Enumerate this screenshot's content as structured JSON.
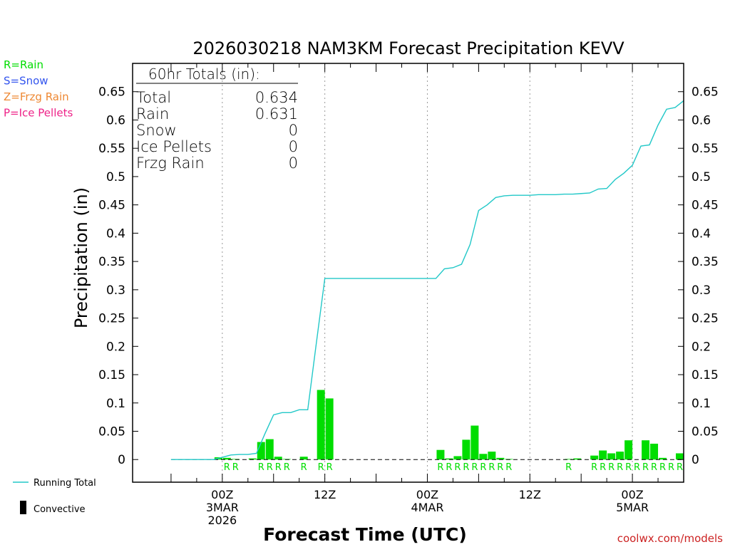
{
  "chart_data": {
    "type": "bar",
    "title": "2026030218 NAM3KM Forecast Precipitation KEVV",
    "xlabel": "Forecast Time (UTC)",
    "ylabel": "Precipitation (in)",
    "ylim": [
      -0.04,
      0.7
    ],
    "y_ticks": [
      0,
      0.05,
      0.1,
      0.15,
      0.2,
      0.25,
      0.3,
      0.35,
      0.4,
      0.45,
      0.5,
      0.55,
      0.6,
      0.65
    ],
    "y_tick_labels": [
      "0",
      "0.05",
      "0.1",
      "0.15",
      "0.2",
      "0.25",
      "0.3",
      "0.35",
      "0.4",
      "0.45",
      "0.5",
      "0.55",
      "0.6",
      "0.65"
    ],
    "x_unit": "forecast hour",
    "xlim": [
      -4.5,
      60
    ],
    "x_ticks": [
      {
        "hour": 6,
        "lines": [
          "00Z",
          "3MAR",
          "2026"
        ]
      },
      {
        "hour": 18,
        "lines": [
          "12Z"
        ]
      },
      {
        "hour": 30,
        "lines": [
          "00Z",
          "4MAR"
        ]
      },
      {
        "hour": 42,
        "lines": [
          "12Z"
        ]
      },
      {
        "hour": 54,
        "lines": [
          "00Z",
          "5MAR"
        ]
      }
    ],
    "bars": {
      "name": "Hourly Precipitation",
      "x": [
        6,
        7,
        8,
        10,
        11,
        12,
        13,
        14,
        16,
        18,
        19,
        32,
        33,
        34,
        35,
        36,
        37,
        38,
        39,
        40,
        47,
        48,
        50,
        51,
        52,
        53,
        54,
        56,
        57,
        58,
        60
      ],
      "values": [
        0.004,
        0.003,
        0.001,
        0.002,
        0.031,
        0.036,
        0.005,
        0.001,
        0.005,
        0.123,
        0.108,
        0.017,
        0.002,
        0.006,
        0.035,
        0.06,
        0.01,
        0.014,
        0.003,
        0.001,
        0.001,
        0.002,
        0.007,
        0.016,
        0.011,
        0.014,
        0.034,
        0.034,
        0.028,
        0.003,
        0.011
      ]
    },
    "series": [
      {
        "name": "Running Total",
        "x": [
          0,
          1,
          2,
          3,
          4,
          5,
          6,
          7,
          8,
          9,
          10,
          11,
          12,
          13,
          14,
          15,
          16,
          17,
          18,
          19,
          20,
          21,
          22,
          23,
          24,
          25,
          26,
          27,
          28,
          29,
          30,
          31,
          32,
          33,
          34,
          35,
          36,
          37,
          38,
          39,
          40,
          41,
          42,
          43,
          44,
          45,
          46,
          47,
          48,
          49,
          50,
          51,
          52,
          53,
          54,
          55,
          56,
          57,
          58,
          59,
          60
        ],
        "values": [
          0,
          0,
          0,
          0,
          0,
          0,
          0.004,
          0.008,
          0.009,
          0.009,
          0.011,
          0.046,
          0.079,
          0.083,
          0.083,
          0.088,
          0.088,
          0.205,
          0.32,
          0.32,
          0.32,
          0.32,
          0.32,
          0.32,
          0.32,
          0.32,
          0.32,
          0.32,
          0.32,
          0.32,
          0.32,
          0.32,
          0.337,
          0.339,
          0.345,
          0.38,
          0.44,
          0.45,
          0.463,
          0.466,
          0.467,
          0.467,
          0.467,
          0.468,
          0.468,
          0.468,
          0.469,
          0.469,
          0.47,
          0.471,
          0.478,
          0.479,
          0.495,
          0.506,
          0.52,
          0.554,
          0.556,
          0.591,
          0.619,
          0.622,
          0.634
        ]
      }
    ],
    "precip_type_labels": {
      "x": [
        7,
        8,
        11,
        12,
        13,
        14,
        16,
        18,
        19,
        32,
        33,
        34,
        35,
        36,
        37,
        38,
        39,
        40,
        47,
        50,
        51,
        52,
        53,
        54,
        55,
        56,
        57,
        58,
        59,
        60
      ],
      "text": "R"
    },
    "type_legend": [
      {
        "label": "R=Rain",
        "color": "#00dd00"
      },
      {
        "label": "S=Snow",
        "color": "#3355ee"
      },
      {
        "label": "Z=Frzg Rain",
        "color": "#ee8833"
      },
      {
        "label": "P=Ice Pellets",
        "color": "#ee2288"
      }
    ],
    "totals_box": {
      "title": "60hr Totals (in):",
      "rows": [
        {
          "label": "Total",
          "value": "0.634"
        },
        {
          "label": "Rain",
          "value": "0.631"
        },
        {
          "label": "Snow",
          "value": "0"
        },
        {
          "label": "Ice Pellets",
          "value": "0"
        },
        {
          "label": "Frzg Rain",
          "value": "0"
        }
      ]
    },
    "series_legend": [
      {
        "label": "Running Total",
        "color": "#22c8c8",
        "kind": "line"
      },
      {
        "label": "Convective",
        "color": "#000000",
        "kind": "bar"
      }
    ],
    "colors": {
      "bars": "#00dd00",
      "running_total": "#22c8c8",
      "type_letter": "#00dd00"
    },
    "watermark": "coolwx.com/models"
  }
}
